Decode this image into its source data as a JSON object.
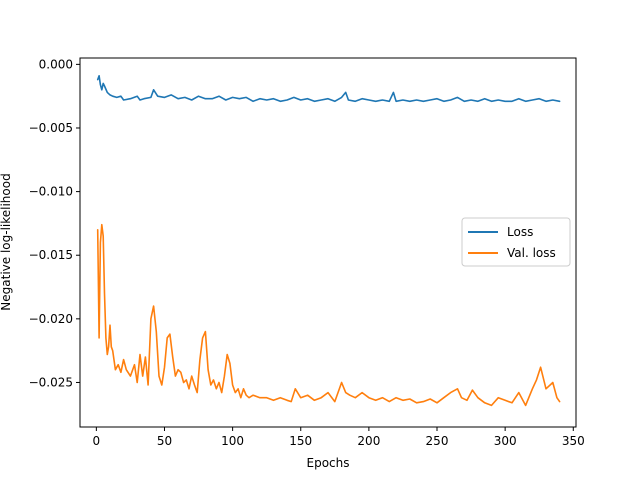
{
  "chart_data": {
    "type": "line",
    "title": "",
    "xlabel": "Epochs",
    "ylabel": "Negative log-likelihood",
    "xlim": [
      -12,
      352
    ],
    "ylim": [
      -0.0285,
      0.0005
    ],
    "xticks": [
      0,
      50,
      100,
      150,
      200,
      250,
      300,
      350
    ],
    "xtick_labels": [
      "0",
      "50",
      "100",
      "150",
      "200",
      "250",
      "300",
      "350"
    ],
    "yticks": [
      0.0,
      -0.005,
      -0.01,
      -0.015,
      -0.02,
      -0.025
    ],
    "ytick_labels": [
      "0.000",
      "−0.005",
      "−0.010",
      "−0.015",
      "−0.020",
      "−0.025"
    ],
    "grid": false,
    "legend_position": "center-right",
    "series": [
      {
        "name": "Loss",
        "color": "#1f77b4",
        "x": [
          1,
          2,
          3,
          4,
          5,
          6,
          8,
          10,
          12,
          15,
          18,
          20,
          25,
          30,
          32,
          35,
          40,
          42,
          45,
          50,
          55,
          60,
          65,
          70,
          75,
          80,
          85,
          90,
          95,
          100,
          105,
          110,
          115,
          120,
          125,
          130,
          135,
          140,
          145,
          150,
          155,
          160,
          165,
          170,
          175,
          180,
          183,
          185,
          190,
          195,
          200,
          205,
          210,
          215,
          218,
          220,
          225,
          230,
          235,
          240,
          245,
          250,
          255,
          260,
          265,
          270,
          275,
          280,
          285,
          290,
          295,
          300,
          305,
          310,
          315,
          320,
          325,
          330,
          335,
          340
        ],
        "values": [
          -0.0012,
          -0.0009,
          -0.0016,
          -0.002,
          -0.0015,
          -0.0017,
          -0.0022,
          -0.0024,
          -0.0025,
          -0.0026,
          -0.0025,
          -0.0028,
          -0.0027,
          -0.0025,
          -0.0028,
          -0.0027,
          -0.0026,
          -0.002,
          -0.0025,
          -0.0026,
          -0.0024,
          -0.0027,
          -0.0026,
          -0.0028,
          -0.0025,
          -0.0027,
          -0.0027,
          -0.0025,
          -0.0028,
          -0.0026,
          -0.0027,
          -0.0026,
          -0.0029,
          -0.0027,
          -0.0028,
          -0.0027,
          -0.0029,
          -0.0028,
          -0.0026,
          -0.0028,
          -0.0027,
          -0.0029,
          -0.0028,
          -0.0027,
          -0.0029,
          -0.0026,
          -0.0022,
          -0.0028,
          -0.0029,
          -0.0027,
          -0.0028,
          -0.0029,
          -0.0028,
          -0.0029,
          -0.0022,
          -0.0029,
          -0.0028,
          -0.0029,
          -0.0028,
          -0.0029,
          -0.0028,
          -0.0027,
          -0.0029,
          -0.0028,
          -0.0026,
          -0.0029,
          -0.0028,
          -0.0029,
          -0.0027,
          -0.0029,
          -0.0028,
          -0.0029,
          -0.0029,
          -0.0027,
          -0.0029,
          -0.0028,
          -0.0027,
          -0.0029,
          -0.0028,
          -0.0029
        ]
      },
      {
        "name": "Val. loss",
        "color": "#ff7f0e",
        "x": [
          1,
          2,
          3,
          4,
          5,
          6,
          7,
          8,
          9,
          10,
          11,
          12,
          14,
          16,
          18,
          20,
          22,
          25,
          28,
          30,
          32,
          34,
          36,
          38,
          40,
          42,
          44,
          46,
          48,
          50,
          52,
          54,
          56,
          58,
          60,
          62,
          64,
          66,
          68,
          70,
          72,
          74,
          76,
          78,
          80,
          82,
          84,
          86,
          88,
          90,
          92,
          94,
          96,
          98,
          100,
          102,
          104,
          106,
          108,
          110,
          112,
          115,
          120,
          125,
          130,
          135,
          140,
          143,
          146,
          150,
          155,
          160,
          165,
          170,
          175,
          180,
          183,
          186,
          190,
          195,
          200,
          205,
          210,
          215,
          220,
          225,
          230,
          235,
          240,
          245,
          250,
          255,
          260,
          265,
          268,
          272,
          276,
          280,
          285,
          290,
          295,
          300,
          305,
          310,
          315,
          320,
          323,
          326,
          330,
          335,
          338,
          340
        ],
        "values": [
          -0.013,
          -0.0215,
          -0.014,
          -0.0126,
          -0.0135,
          -0.018,
          -0.0215,
          -0.0228,
          -0.0222,
          -0.0205,
          -0.0222,
          -0.0225,
          -0.024,
          -0.0236,
          -0.0242,
          -0.0232,
          -0.024,
          -0.0245,
          -0.0236,
          -0.025,
          -0.0228,
          -0.0245,
          -0.023,
          -0.0252,
          -0.02,
          -0.019,
          -0.021,
          -0.0245,
          -0.0252,
          -0.0238,
          -0.0215,
          -0.0212,
          -0.023,
          -0.0245,
          -0.024,
          -0.0242,
          -0.025,
          -0.0248,
          -0.0255,
          -0.0245,
          -0.0252,
          -0.0258,
          -0.0232,
          -0.0215,
          -0.021,
          -0.024,
          -0.0252,
          -0.0248,
          -0.0255,
          -0.025,
          -0.0258,
          -0.0245,
          -0.0228,
          -0.0235,
          -0.0252,
          -0.0258,
          -0.0255,
          -0.0262,
          -0.0255,
          -0.026,
          -0.0262,
          -0.026,
          -0.0262,
          -0.0262,
          -0.0264,
          -0.0262,
          -0.0264,
          -0.0265,
          -0.0255,
          -0.0262,
          -0.026,
          -0.0264,
          -0.0262,
          -0.0258,
          -0.0265,
          -0.025,
          -0.0258,
          -0.026,
          -0.0262,
          -0.0258,
          -0.0262,
          -0.0264,
          -0.0262,
          -0.0265,
          -0.0262,
          -0.0264,
          -0.0263,
          -0.0266,
          -0.0265,
          -0.0263,
          -0.0266,
          -0.0262,
          -0.0258,
          -0.0255,
          -0.0262,
          -0.0264,
          -0.0256,
          -0.0262,
          -0.0266,
          -0.0268,
          -0.0262,
          -0.0264,
          -0.0266,
          -0.0258,
          -0.0268,
          -0.0255,
          -0.0248,
          -0.0238,
          -0.0255,
          -0.025,
          -0.0262,
          -0.0265
        ]
      }
    ]
  }
}
